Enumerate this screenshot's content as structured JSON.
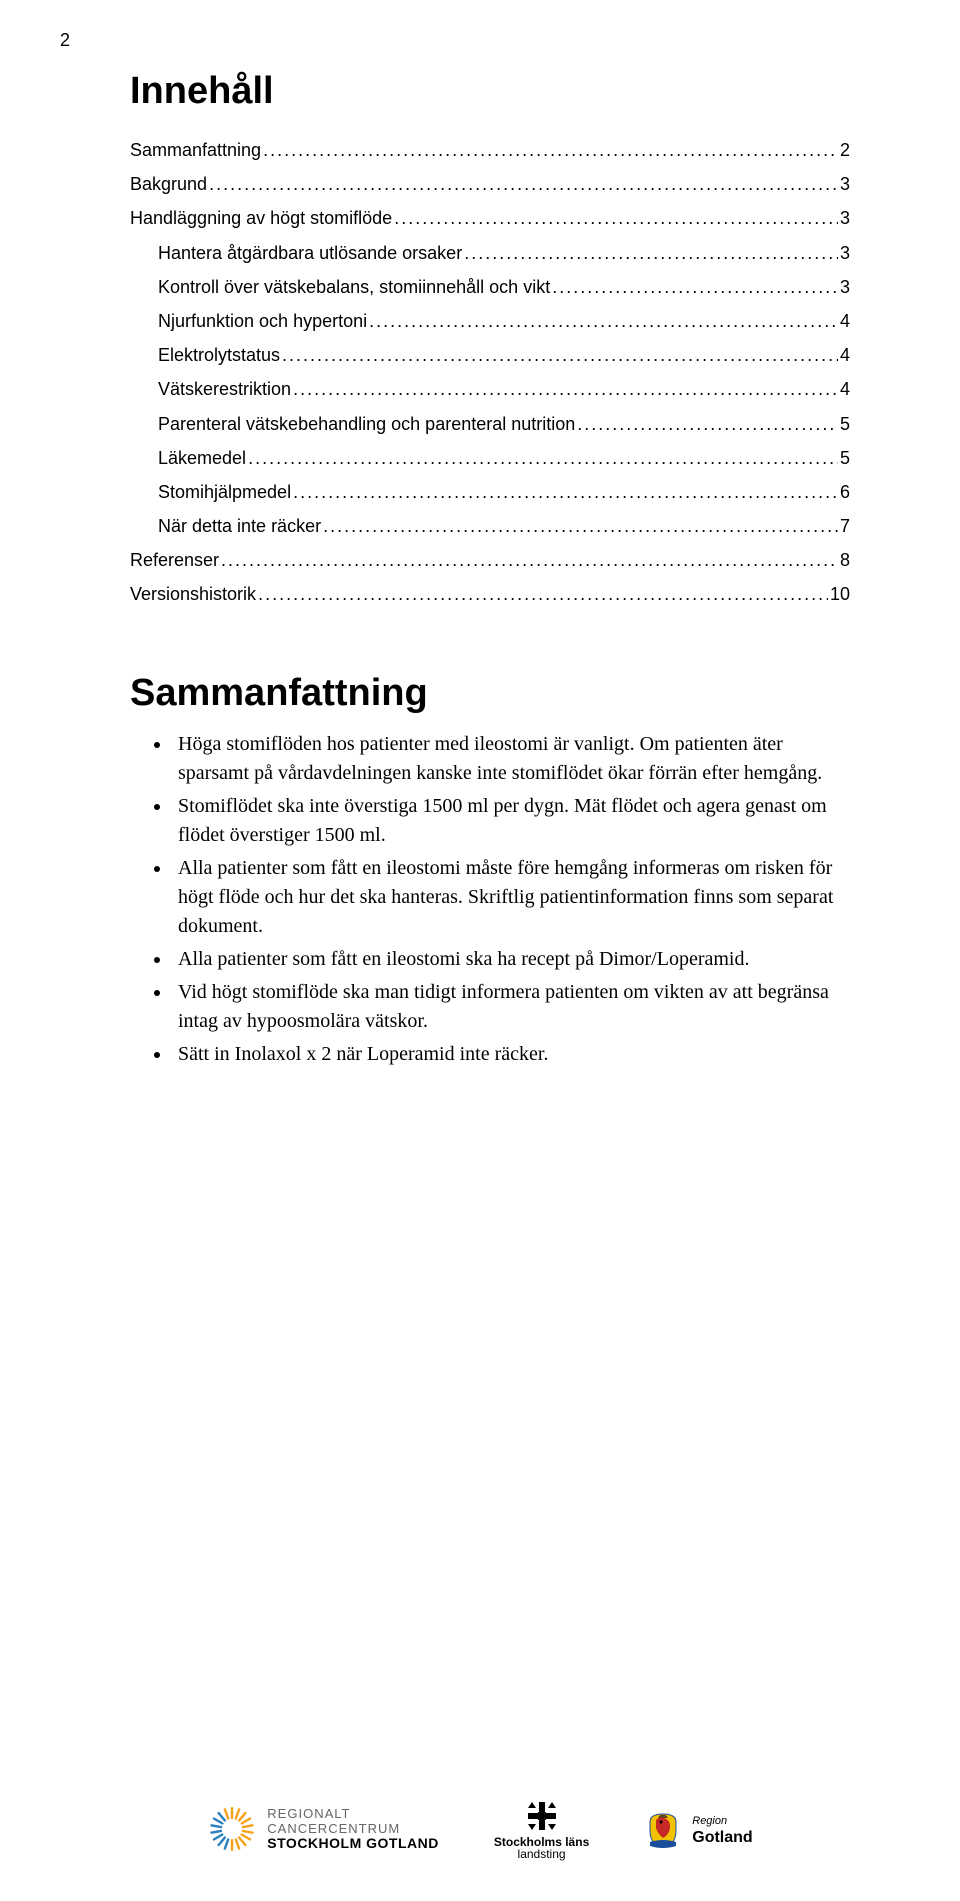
{
  "page_number": "2",
  "toc": {
    "heading": "Innehåll",
    "items": [
      {
        "label": "Sammanfattning",
        "page": "2",
        "indent": false
      },
      {
        "label": "Bakgrund",
        "page": "3",
        "indent": false
      },
      {
        "label": "Handläggning av högt stomiflöde",
        "page": "3",
        "indent": false
      },
      {
        "label": "Hantera åtgärdbara utlösande orsaker",
        "page": "3",
        "indent": true
      },
      {
        "label": "Kontroll över vätskebalans, stomiinnehåll och vikt",
        "page": "3",
        "indent": true
      },
      {
        "label": "Njurfunktion och hypertoni",
        "page": "4",
        "indent": true
      },
      {
        "label": "Elektrolytstatus",
        "page": "4",
        "indent": true
      },
      {
        "label": "Vätskerestriktion",
        "page": "4",
        "indent": true
      },
      {
        "label": "Parenteral vätskebehandling och parenteral nutrition",
        "page": "5",
        "indent": true
      },
      {
        "label": "Läkemedel",
        "page": "5",
        "indent": true
      },
      {
        "label": "Stomihjälpmedel",
        "page": "6",
        "indent": true
      },
      {
        "label": "När detta inte räcker",
        "page": "7",
        "indent": true
      },
      {
        "label": "Referenser",
        "page": "8",
        "indent": false
      },
      {
        "label": "Versionshistorik",
        "page": "10",
        "indent": false
      }
    ]
  },
  "summary": {
    "heading": "Sammanfattning",
    "bullets": [
      "Höga stomiflöden hos patienter med ileostomi är vanligt. Om patienten äter sparsamt på vårdavdelningen kanske inte stomiflödet ökar förrän efter hemgång.",
      "Stomiflödet ska inte överstiga 1500 ml per dygn. Mät flödet och agera genast om flödet överstiger 1500 ml.",
      "Alla patienter som fått en ileostomi måste före hemgång informeras om risken för högt flöde och hur det ska hanteras. Skriftlig patientinformation finns som separat dokument.",
      "Alla patienter som fått en ileostomi ska ha recept på Dimor/Loperamid.",
      "Vid högt stomiflöde ska man tidigt informera patienten om vikten av att begränsa intag av hypoosmolära vätskor.",
      "Sätt in Inolaxol x 2 när Loperamid inte räcker."
    ]
  },
  "logos": {
    "rcc": {
      "line1": "REGIONALT",
      "line2": "CANCERCENTRUM",
      "line3": "STOCKHOLM GOTLAND",
      "colors": {
        "orange": "#f7a11a",
        "blue": "#2a7fbf"
      }
    },
    "sll": {
      "line1": "Stockholms läns",
      "line2": "landsting",
      "color": "#000000"
    },
    "gotland": {
      "prefix": "Region",
      "name": "Gotland",
      "colors": {
        "red": "#c62828",
        "yellow": "#f2c200",
        "blue": "#1a4f9c"
      }
    }
  },
  "colors": {
    "text": "#000000",
    "background": "#ffffff"
  }
}
